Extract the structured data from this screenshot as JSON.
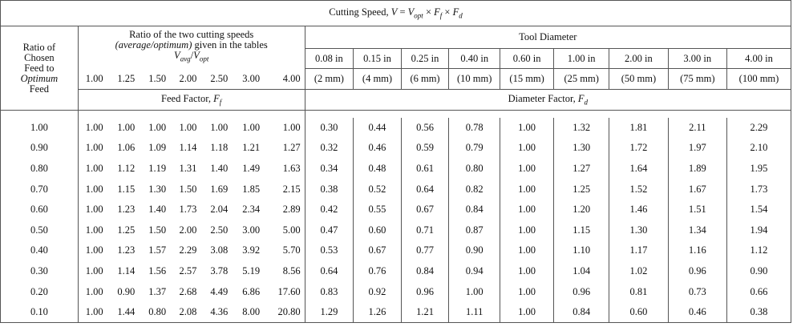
{
  "title": "Cutting Speed, V = Vopt × Ff × Fd",
  "title_parts": {
    "prefix": "Cutting Speed, ",
    "V": "V",
    "eq": " = ",
    "Vopt": "V",
    "opt": "opt",
    "times": " × ",
    "F1": "F",
    "f": "f",
    "F2": "F",
    "d": "d"
  },
  "left_header": {
    "line1": "Ratio of",
    "line2": "Chosen",
    "line3": "Feed to",
    "line4": "Optimum",
    "line5": "Feed"
  },
  "speed_ratio_header": {
    "line1": "Ratio of the two cutting speeds",
    "line2_italic": "(average/optimum)",
    "line2_rest": " given in the tables",
    "Vavg": "V",
    "avg": "avg",
    "slash": "/",
    "Vopt": "V",
    "opt": "opt"
  },
  "tool_diameter_header": "Tool Diameter",
  "speed_ratios": [
    "1.00",
    "1.25",
    "1.50",
    "2.00",
    "2.50",
    "3.00",
    "4.00"
  ],
  "diameters_in": [
    "0.08 in",
    "0.15 in",
    "0.25 in",
    "0.40 in",
    "0.60 in",
    "1.00 in",
    "2.00 in",
    "3.00 in",
    "4.00 in"
  ],
  "diameters_mm": [
    "(2 mm)",
    "(4 mm)",
    "(6 mm)",
    "(10 mm)",
    "(15 mm)",
    "(25 mm)",
    "(50 mm)",
    "(75 mm)",
    "(100 mm)"
  ],
  "feed_factor_label": {
    "text": "Feed Factor, ",
    "F": "F",
    "sub": "f"
  },
  "diameter_factor_label": {
    "text": "Diameter Factor, ",
    "F": "F",
    "sub": "d"
  },
  "rows": [
    {
      "ratio": "1.00",
      "feed": [
        "1.00",
        "1.00",
        "1.00",
        "1.00",
        "1.00",
        "1.00",
        "1.00"
      ],
      "diam": [
        "0.30",
        "0.44",
        "0.56",
        "0.78",
        "1.00",
        "1.32",
        "1.81",
        "2.11",
        "2.29"
      ]
    },
    {
      "ratio": "0.90",
      "feed": [
        "1.00",
        "1.06",
        "1.09",
        "1.14",
        "1.18",
        "1.21",
        "1.27"
      ],
      "diam": [
        "0.32",
        "0.46",
        "0.59",
        "0.79",
        "1.00",
        "1.30",
        "1.72",
        "1.97",
        "2.10"
      ]
    },
    {
      "ratio": "0.80",
      "feed": [
        "1.00",
        "1.12",
        "1.19",
        "1.31",
        "1.40",
        "1.49",
        "1.63"
      ],
      "diam": [
        "0.34",
        "0.48",
        "0.61",
        "0.80",
        "1.00",
        "1.27",
        "1.64",
        "1.89",
        "1.95"
      ]
    },
    {
      "ratio": "0.70",
      "feed": [
        "1.00",
        "1.15",
        "1.30",
        "1.50",
        "1.69",
        "1.85",
        "2.15"
      ],
      "diam": [
        "0.38",
        "0.52",
        "0.64",
        "0.82",
        "1.00",
        "1.25",
        "1.52",
        "1.67",
        "1.73"
      ]
    },
    {
      "ratio": "0.60",
      "feed": [
        "1.00",
        "1.23",
        "1.40",
        "1.73",
        "2.04",
        "2.34",
        "2.89"
      ],
      "diam": [
        "0.42",
        "0.55",
        "0.67",
        "0.84",
        "1.00",
        "1.20",
        "1.46",
        "1.51",
        "1.54"
      ]
    },
    {
      "ratio": "0.50",
      "feed": [
        "1.00",
        "1.25",
        "1.50",
        "2.00",
        "2.50",
        "3.00",
        "5.00"
      ],
      "diam": [
        "0.47",
        "0.60",
        "0.71",
        "0.87",
        "1.00",
        "1.15",
        "1.30",
        "1.34",
        "1.94"
      ]
    },
    {
      "ratio": "0.40",
      "feed": [
        "1.00",
        "1.23",
        "1.57",
        "2.29",
        "3.08",
        "3.92",
        "5.70"
      ],
      "diam": [
        "0.53",
        "0.67",
        "0.77",
        "0.90",
        "1.00",
        "1.10",
        "1.17",
        "1.16",
        "1.12"
      ]
    },
    {
      "ratio": "0.30",
      "feed": [
        "1.00",
        "1.14",
        "1.56",
        "2.57",
        "3.78",
        "5.19",
        "8.56"
      ],
      "diam": [
        "0.64",
        "0.76",
        "0.84",
        "0.94",
        "1.00",
        "1.04",
        "1.02",
        "0.96",
        "0.90"
      ]
    },
    {
      "ratio": "0.20",
      "feed": [
        "1.00",
        "0.90",
        "1.37",
        "2.68",
        "4.49",
        "6.86",
        "17.60"
      ],
      "diam": [
        "0.83",
        "0.92",
        "0.96",
        "1.00",
        "1.00",
        "0.96",
        "0.81",
        "0.73",
        "0.66"
      ]
    },
    {
      "ratio": "0.10",
      "feed": [
        "1.00",
        "1.44",
        "0.80",
        "2.08",
        "4.36",
        "8.00",
        "20.80"
      ],
      "diam": [
        "1.29",
        "1.26",
        "1.21",
        "1.11",
        "1.00",
        "0.84",
        "0.60",
        "0.46",
        "0.38"
      ]
    }
  ]
}
